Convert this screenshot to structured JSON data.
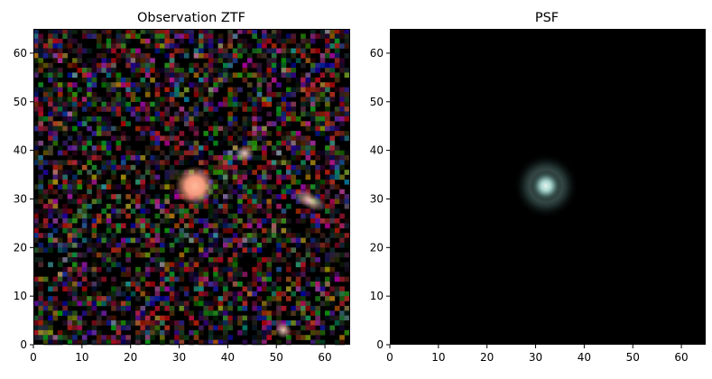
{
  "panels": [
    {
      "title": "Observation ZTF",
      "image": "noisy RGB astronomical observation: bright peach-colored source at center, fainter sources around (43,39), (57,29) and (51,3)",
      "xticks": [
        "0",
        "10",
        "20",
        "30",
        "40",
        "50",
        "60"
      ],
      "yticks": [
        "0",
        "10",
        "20",
        "30",
        "40",
        "50",
        "60"
      ]
    },
    {
      "title": "PSF",
      "image": "point spread function: compact cyan-white blob on black background centered near (32,32)",
      "xticks": [
        "0",
        "10",
        "20",
        "30",
        "40",
        "50",
        "60"
      ],
      "yticks": [
        "0",
        "10",
        "20",
        "30",
        "40",
        "50",
        "60"
      ]
    }
  ],
  "colors": {
    "background": "#000000",
    "psf_core": "#bfe3de",
    "source": "#f3a98a"
  }
}
